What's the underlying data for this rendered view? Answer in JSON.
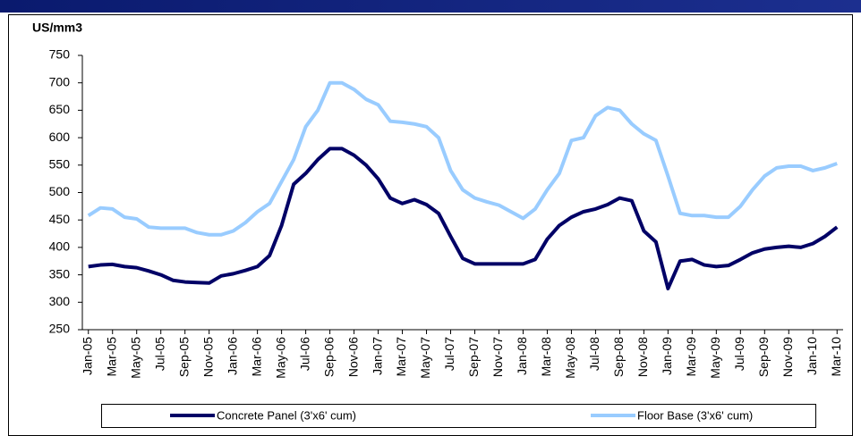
{
  "chart_data": {
    "type": "line",
    "y_label": "US/mm3",
    "categories": [
      "Jan-05",
      null,
      "Mar-05",
      null,
      "May-05",
      null,
      "Jul-05",
      null,
      "Sep-05",
      null,
      "Nov-05",
      null,
      "Jan-06",
      null,
      "Mar-06",
      null,
      "May-06",
      null,
      "Jul-06",
      null,
      "Sep-06",
      null,
      "Nov-06",
      null,
      "Jan-07",
      null,
      "Mar-07",
      null,
      "May-07",
      null,
      "Jul-07",
      null,
      "Sep-07",
      null,
      "Nov-07",
      null,
      "Jan-08",
      null,
      "Mar-08",
      null,
      "May-08",
      null,
      "Jul-08",
      null,
      "Sep-08",
      null,
      "Nov-08",
      null,
      "Jan-09",
      null,
      "Mar-09",
      null,
      "May-09",
      null,
      "Jul-09",
      null,
      "Sep-09",
      null,
      "Nov-09",
      null,
      "Jan-10",
      null,
      "Mar-10"
    ],
    "series": [
      {
        "name": "Concrete Panel (3'x6' cum)",
        "color": "#000066",
        "values": [
          365,
          368,
          369,
          365,
          363,
          357,
          350,
          340,
          337,
          336,
          335,
          348,
          352,
          358,
          365,
          385,
          440,
          515,
          535,
          560,
          580,
          580,
          568,
          550,
          525,
          490,
          480,
          487,
          478,
          462,
          420,
          380,
          370,
          370,
          370,
          370,
          370,
          378,
          415,
          440,
          455,
          465,
          470,
          478,
          490,
          485,
          430,
          410,
          325,
          375,
          378,
          368,
          365,
          367,
          378,
          390,
          397,
          400,
          402,
          400,
          407,
          420,
          437
        ]
      },
      {
        "name": "Floor Base (3'x6' cum)",
        "color": "#99ccff",
        "values": [
          458,
          472,
          470,
          455,
          452,
          437,
          435,
          435,
          435,
          427,
          423,
          423,
          430,
          445,
          465,
          480,
          520,
          560,
          620,
          650,
          700,
          700,
          688,
          670,
          660,
          630,
          628,
          625,
          620,
          600,
          540,
          505,
          490,
          483,
          477,
          465,
          453,
          470,
          505,
          535,
          595,
          600,
          640,
          655,
          650,
          625,
          607,
          595,
          530,
          462,
          458,
          458,
          455,
          455,
          475,
          505,
          530,
          545,
          548,
          548,
          540,
          545,
          553
        ]
      }
    ],
    "ylim": [
      250,
      750
    ],
    "yticks": [
      250,
      300,
      350,
      400,
      450,
      500,
      550,
      600,
      650,
      700,
      750
    ]
  }
}
